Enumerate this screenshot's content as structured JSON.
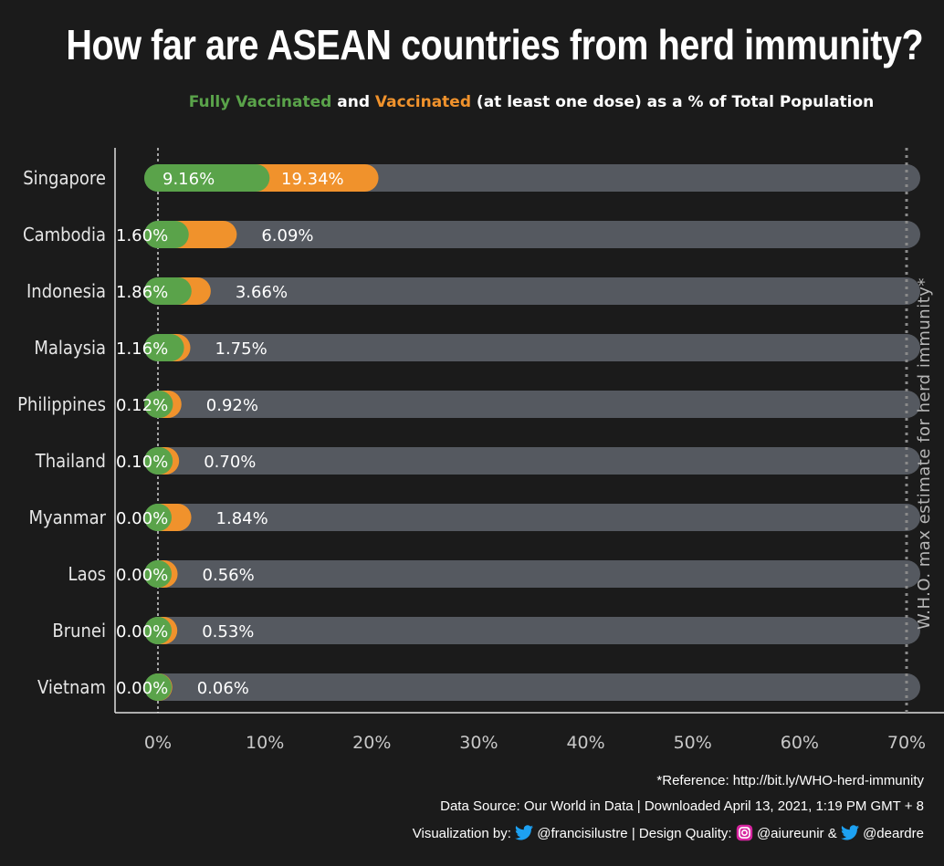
{
  "title": "How far are ASEAN countries from herd immunity?",
  "subtitle": {
    "part1": "Fully Vaccinated",
    "part2": " and ",
    "part3": "Vaccinated",
    "part4": " (at least one dose) as a % of Total Population"
  },
  "colors": {
    "background": "#1b1b1b",
    "fully_vaccinated": "#5aa34a",
    "vaccinated": "#f0922c",
    "track": "#555960",
    "text": "#ffffff",
    "axis_text": "#c8c8c8"
  },
  "chart_data": {
    "type": "bar",
    "orientation": "horizontal",
    "title": "How far are ASEAN countries from herd immunity?",
    "xlim": [
      0,
      70
    ],
    "x_ticks": [
      "0%",
      "10%",
      "20%",
      "30%",
      "40%",
      "50%",
      "60%",
      "70%"
    ],
    "categories": [
      "Singapore",
      "Cambodia",
      "Indonesia",
      "Malaysia",
      "Philippines",
      "Thailand",
      "Myanmar",
      "Laos",
      "Brunei",
      "Vietnam"
    ],
    "series": [
      {
        "name": "Fully Vaccinated",
        "values": [
          9.16,
          1.6,
          1.86,
          1.16,
          0.12,
          0.1,
          0.0,
          0.0,
          0.0,
          0.0
        ],
        "labels": [
          "9.16%",
          "1.60%",
          "1.86%",
          "1.16%",
          "0.12%",
          "0.10%",
          "0.00%",
          "0.00%",
          "0.00%",
          "0.00%"
        ]
      },
      {
        "name": "Vaccinated",
        "values": [
          19.34,
          6.09,
          3.66,
          1.75,
          0.92,
          0.7,
          1.84,
          0.56,
          0.53,
          0.06
        ],
        "labels": [
          "19.34%",
          "6.09%",
          "3.66%",
          "1.75%",
          "0.92%",
          "0.70%",
          "1.84%",
          "0.56%",
          "0.53%",
          "0.06%"
        ]
      }
    ],
    "reference_line": {
      "value": 70,
      "label": "W.H.O. max estimate for herd immunity*"
    }
  },
  "footer": {
    "reference": "*Reference: http://bit.ly/WHO-herd-immunity",
    "source": "Data Source: Our World in Data | Downloaded April 13, 2021, 1:19 PM GMT + 8",
    "viz_prefix": "Visualization by: ",
    "viz_twitter": "@francisilustre",
    "design_prefix": " | Design Quality: ",
    "design_instagram": "@aiureunir",
    "design_amp": " & ",
    "design_twitter": "@deardre"
  }
}
